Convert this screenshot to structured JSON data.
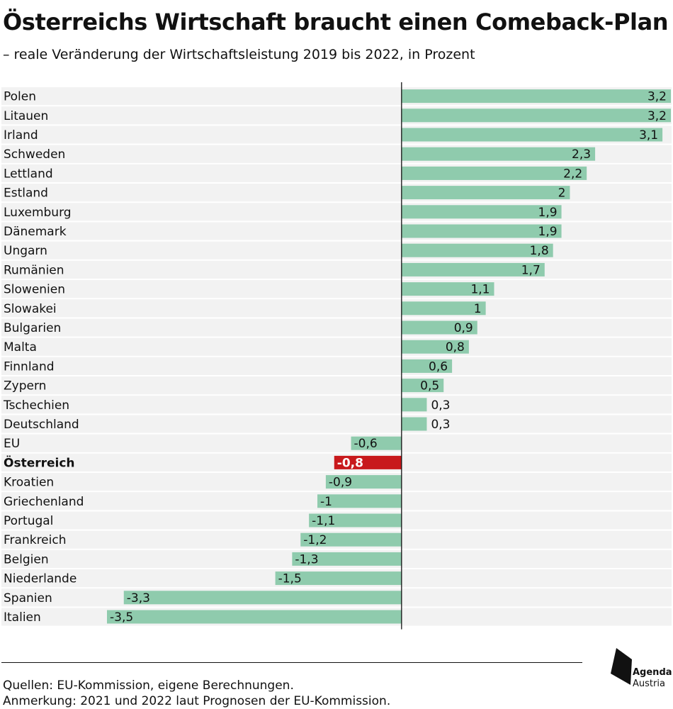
{
  "header": {
    "title": "Österreichs Wirtschaft braucht einen Comeback-Plan",
    "subtitle": "– reale Veränderung der Wirtschaftsleistung 2019 bis 2022, in Prozent"
  },
  "colors": {
    "bar": "#8fcbad",
    "highlight_bar": "#c8191c",
    "row_band": "#f2f2f2",
    "axis": "#111111"
  },
  "chart_data": {
    "type": "bar",
    "orientation": "horizontal",
    "categories": [
      "Polen",
      "Litauen",
      "Irland",
      "Schweden",
      "Lettland",
      "Estland",
      "Luxemburg",
      "Dänemark",
      "Ungarn",
      "Rumänien",
      "Slowenien",
      "Slowakei",
      "Bulgarien",
      "Malta",
      "Finnland",
      "Zypern",
      "Tschechien",
      "Deutschland",
      "EU",
      "Österreich",
      "Kroatien",
      "Griechenland",
      "Portugal",
      "Frankreich",
      "Belgien",
      "Niederlande",
      "Spanien",
      "Italien"
    ],
    "values": [
      3.2,
      3.2,
      3.1,
      2.3,
      2.2,
      2,
      1.9,
      1.9,
      1.8,
      1.7,
      1.1,
      1,
      0.9,
      0.8,
      0.6,
      0.5,
      0.3,
      0.3,
      -0.6,
      -0.8,
      -0.9,
      -1,
      -1.1,
      -1.2,
      -1.3,
      -1.5,
      -3.3,
      -3.5
    ],
    "value_labels": [
      "3,2",
      "3,2",
      "3,1",
      "2,3",
      "2,2",
      "2",
      "1,9",
      "1,9",
      "1,8",
      "1,7",
      "1,1",
      "1",
      "0,9",
      "0,8",
      "0,6",
      "0,5",
      "0,3",
      "0,3",
      "-0,6",
      "-0,8",
      "-0,9",
      "-1",
      "-1,1",
      "-1,2",
      "-1,3",
      "-1,5",
      "-3,3",
      "-3,5"
    ],
    "highlight": "Österreich",
    "xlim": [
      -3.5,
      3.2
    ],
    "grid": false,
    "legend": "none"
  },
  "footer": {
    "sources": "Quellen: EU-Kommission, eigene Berechnungen.",
    "note": "Anmerkung: 2021 und 2022 laut Prognosen der EU-Kommission."
  },
  "logo": {
    "line1": "Agenda",
    "line2": "Austria"
  }
}
